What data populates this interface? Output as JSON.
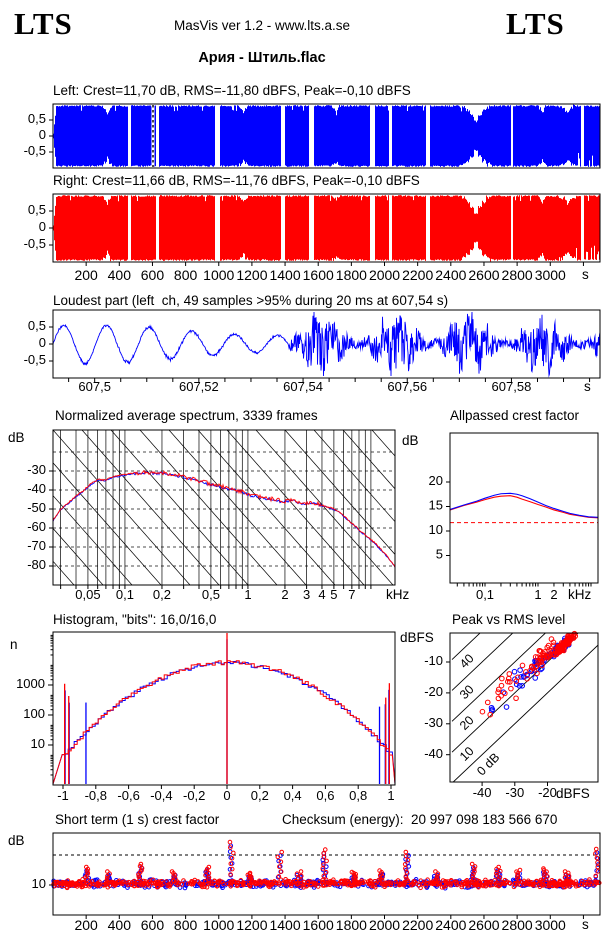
{
  "header": {
    "logo_left": "LTS",
    "logo_right": "LTS",
    "app_line": "MasVis ver 1.2 - www.lts.a.se",
    "song_title": "Ария - Штиль.flac"
  },
  "colors": {
    "left_channel": "#0000ff",
    "right_channel": "#ff0000",
    "grid": "#000000",
    "reference_dashed": "#ff0000",
    "background": "#ffffff"
  },
  "chart_data": {
    "wave_left": {
      "type": "area",
      "title": "Left: Crest=11,70 dB, RMS=-11,80 dBFS, Peak=-0,10 dBFS",
      "stats": {
        "crest_db": 11.7,
        "rms_dbfs": -11.8,
        "peak_dbfs": -0.1
      },
      "ylim": [
        -1,
        1
      ],
      "ytick_labels": [
        "0,5",
        "0",
        "-0,5"
      ],
      "ytick_values": [
        0.5,
        0,
        -0.5
      ],
      "marker_frac": 0.183,
      "seed": 11,
      "gaps": [
        [
          0.1355,
          0.142
        ],
        [
          0.1865,
          0.1925
        ],
        [
          0.296,
          0.305
        ],
        [
          0.4155,
          0.4225
        ],
        [
          0.468,
          0.4755
        ],
        [
          0.579,
          0.587
        ],
        [
          0.6135,
          0.6185
        ],
        [
          0.6815,
          0.6875
        ],
        [
          0.8365,
          0.84
        ],
        [
          0.9645,
          0.9695
        ]
      ],
      "dips": [
        [
          0.09,
          0.107,
          0.72
        ],
        [
          0.34,
          0.356,
          0.8
        ],
        [
          0.51,
          0.525,
          0.86
        ],
        [
          0.743,
          0.802,
          0.5
        ],
        [
          0.885,
          0.902,
          0.8
        ],
        [
          0.925,
          0.955,
          0.82
        ]
      ],
      "bottom_notches": [
        0.955,
        0.998
      ]
    },
    "wave_right": {
      "type": "area",
      "title": "Right: Crest=11,66 dB, RMS=-11,76 dBFS, Peak=-0,10 dBFS",
      "stats": {
        "crest_db": 11.66,
        "rms_dbfs": -11.76,
        "peak_dbfs": -0.1
      },
      "ylim": [
        -1,
        1
      ],
      "ytick_labels": [
        "0,5",
        "0",
        "-0,5"
      ],
      "ytick_values": [
        0.5,
        0,
        -0.5
      ],
      "seed": 23,
      "gaps": [
        [
          0.1355,
          0.142
        ],
        [
          0.1865,
          0.1925
        ],
        [
          0.296,
          0.305
        ],
        [
          0.4155,
          0.4225
        ],
        [
          0.468,
          0.4755
        ],
        [
          0.579,
          0.587
        ],
        [
          0.6135,
          0.6185
        ],
        [
          0.6815,
          0.6875
        ],
        [
          0.8365,
          0.84
        ],
        [
          0.9645,
          0.9695
        ]
      ],
      "dips": [
        [
          0.09,
          0.107,
          0.75
        ],
        [
          0.34,
          0.356,
          0.82
        ],
        [
          0.51,
          0.525,
          0.88
        ],
        [
          0.743,
          0.802,
          0.47
        ],
        [
          0.885,
          0.902,
          0.78
        ],
        [
          0.925,
          0.955,
          0.8
        ]
      ],
      "bottom_notches": [
        0.955,
        0.998
      ],
      "xtick_values": [
        200,
        400,
        600,
        800,
        1000,
        1200,
        1400,
        1600,
        1800,
        2000,
        2200,
        2400,
        2600,
        2800,
        3000
      ],
      "xtick_labels": [
        "200",
        "400",
        "600",
        "800",
        "1000",
        "1200",
        "1400",
        "1600",
        "1800",
        "2000",
        "2200",
        "2400",
        "2600",
        "2800",
        "3000"
      ],
      "xunit": "s",
      "xlim_s": [
        0,
        3300
      ]
    },
    "loudest": {
      "type": "line",
      "title": "Loudest part (left  ch, 49 samples >95% during 20 ms at 607,54 s)",
      "ylim": [
        -1,
        1
      ],
      "ytick_labels": [
        "0,5",
        "0",
        "-0,5"
      ],
      "ytick_values": [
        0.5,
        0,
        -0.5
      ],
      "xlim_s": [
        607.492,
        607.597
      ],
      "xtick_values": [
        607.5,
        607.52,
        607.54,
        607.56,
        607.58
      ],
      "xtick_labels": [
        "607,5",
        "607,52",
        "607,54",
        "607,56",
        "607,58"
      ],
      "xunit": "s",
      "seed": 5
    },
    "spectrum": {
      "type": "line",
      "title": "Normalized average spectrum, 3339 frames",
      "ylabel": "dB",
      "ytick_values": [
        -30,
        -40,
        -50,
        -60,
        -70,
        -80
      ],
      "ytick_labels": [
        "-30",
        "-40",
        "-50",
        "-60",
        "-70",
        "-80"
      ],
      "ylim": [
        -88,
        -9
      ],
      "xlim_khz": [
        0.026,
        15.7
      ],
      "xtick_values": [
        0.05,
        0.1,
        0.2,
        0.5,
        1,
        2,
        3,
        4,
        5,
        7
      ],
      "xtick_labels": [
        "0,05",
        "0,1",
        "0,2",
        "0,5",
        "1",
        "2",
        "3",
        "4",
        "5",
        "7"
      ],
      "xunit": "kHz",
      "series": [
        {
          "name": "left",
          "color": "#0000ff"
        },
        {
          "name": "right",
          "color": "#ff0000"
        }
      ],
      "points": [
        [
          0.026,
          -56
        ],
        [
          0.03,
          -50
        ],
        [
          0.035,
          -46.5
        ],
        [
          0.04,
          -43
        ],
        [
          0.045,
          -41
        ],
        [
          0.05,
          -38
        ],
        [
          0.055,
          -36
        ],
        [
          0.06,
          -34.5
        ],
        [
          0.07,
          -34.8
        ],
        [
          0.08,
          -33
        ],
        [
          0.09,
          -32.5
        ],
        [
          0.1,
          -31.8
        ],
        [
          0.12,
          -31.2
        ],
        [
          0.15,
          -30.6
        ],
        [
          0.18,
          -31
        ],
        [
          0.2,
          -30.8
        ],
        [
          0.25,
          -31.8
        ],
        [
          0.3,
          -33
        ],
        [
          0.35,
          -34.2
        ],
        [
          0.4,
          -35.3
        ],
        [
          0.5,
          -36.8
        ],
        [
          0.6,
          -38
        ],
        [
          0.7,
          -39.2
        ],
        [
          0.8,
          -40
        ],
        [
          0.9,
          -41
        ],
        [
          1.0,
          -42
        ],
        [
          1.1,
          -43
        ],
        [
          1.2,
          -43.5
        ],
        [
          1.4,
          -44.3
        ],
        [
          1.6,
          -44.8
        ],
        [
          1.8,
          -45.5
        ],
        [
          2.0,
          -46
        ],
        [
          2.2,
          -45.2
        ],
        [
          2.4,
          -45.6
        ],
        [
          2.6,
          -46.5
        ],
        [
          2.8,
          -47
        ],
        [
          3.0,
          -46.8
        ],
        [
          3.3,
          -46.2
        ],
        [
          3.6,
          -47
        ],
        [
          4.0,
          -48
        ],
        [
          4.5,
          -49
        ],
        [
          5.0,
          -50
        ],
        [
          5.5,
          -51.5
        ],
        [
          6.0,
          -53.5
        ],
        [
          6.5,
          -55.5
        ],
        [
          7.0,
          -57.5
        ],
        [
          7.5,
          -59
        ],
        [
          8.0,
          -61
        ],
        [
          9,
          -63.5
        ],
        [
          10,
          -66
        ],
        [
          11,
          -68.5
        ],
        [
          12,
          -71
        ],
        [
          13,
          -73.5
        ],
        [
          14,
          -76
        ],
        [
          15,
          -78.5
        ],
        [
          15.7,
          -80.5
        ]
      ]
    },
    "allpassed": {
      "type": "line",
      "title": "Allpassed crest factor",
      "ylabel": "dB",
      "ytick_values": [
        5,
        10,
        15,
        20
      ],
      "ytick_labels": [
        "5",
        "10",
        "15",
        "20"
      ],
      "ylim": [
        -0.5,
        30
      ],
      "xlim_khz": [
        0.022,
        13.5
      ],
      "xtick_values": [
        0.1,
        1,
        2
      ],
      "xtick_labels": [
        "0,1",
        "1",
        "2"
      ],
      "xunit": "kHz",
      "reference_crest_db": 11.7,
      "series": [
        {
          "name": "left",
          "color": "#0000ff",
          "points": [
            [
              0.022,
              14.4
            ],
            [
              0.04,
              15.3
            ],
            [
              0.07,
              16.1
            ],
            [
              0.1,
              16.7
            ],
            [
              0.15,
              17.3
            ],
            [
              0.2,
              17.6
            ],
            [
              0.3,
              17.7
            ],
            [
              0.4,
              17.5
            ],
            [
              0.5,
              17.2
            ],
            [
              0.7,
              16.6
            ],
            [
              1,
              15.9
            ],
            [
              1.4,
              15.2
            ],
            [
              2,
              14.6
            ],
            [
              3,
              14.0
            ],
            [
              4,
              13.6
            ],
            [
              6,
              13.2
            ],
            [
              9,
              12.9
            ],
            [
              13.5,
              12.8
            ]
          ]
        },
        {
          "name": "right",
          "color": "#ff0000",
          "points": [
            [
              0.022,
              14.3
            ],
            [
              0.04,
              15.2
            ],
            [
              0.07,
              15.9
            ],
            [
              0.1,
              16.4
            ],
            [
              0.15,
              16.9
            ],
            [
              0.2,
              17.1
            ],
            [
              0.3,
              17.2
            ],
            [
              0.4,
              16.9
            ],
            [
              0.5,
              16.5
            ],
            [
              0.7,
              16.0
            ],
            [
              1,
              15.4
            ],
            [
              1.4,
              14.9
            ],
            [
              2,
              14.3
            ],
            [
              3,
              13.8
            ],
            [
              4,
              13.4
            ],
            [
              6,
              13.1
            ],
            [
              9,
              12.8
            ],
            [
              13.5,
              12.7
            ]
          ]
        }
      ]
    },
    "histogram": {
      "type": "line",
      "title": "Histogram, \"bits\": 16,0/16,0",
      "bits": "16,0/16,0",
      "ylabel": "n",
      "ytick_values": [
        10,
        100,
        1000
      ],
      "ytick_labels": [
        "10",
        "100",
        "1000"
      ],
      "ylim_log": [
        0.47,
        59000
      ],
      "xtick_values": [
        -1,
        -0.8,
        -0.6,
        -0.4,
        -0.2,
        0,
        0.2,
        0.4,
        0.6,
        0.8,
        1
      ],
      "xtick_labels": [
        "-1",
        "-0,8",
        "-0,6",
        "-0,4",
        "-0,2",
        "0",
        "0,2",
        "0,4",
        "0,6",
        "0,8",
        "1"
      ],
      "curve": {
        "peak_log10": 3.75,
        "width_coef": 3.1
      },
      "spikes": [
        {
          "x": 0,
          "n": 56000,
          "channel": "both"
        },
        {
          "x": -0.99,
          "n": 1100,
          "channel": "both"
        },
        {
          "x": 0.99,
          "n": 1150,
          "channel": "both"
        },
        {
          "x": -0.965,
          "n": 430,
          "channel": "both"
        },
        {
          "x": 0.968,
          "n": 380,
          "channel": "both"
        },
        {
          "x": -0.86,
          "n": 260,
          "channel": "left"
        },
        {
          "x": 0.93,
          "n": 190,
          "channel": "left"
        }
      ],
      "seed": 9
    },
    "peak_rms": {
      "type": "scatter",
      "title": "Peak vs RMS level",
      "axis_label": "dBFS",
      "ytick_values": [
        -10,
        -20,
        -30,
        -40
      ],
      "ytick_labels": [
        "-10",
        "-20",
        "-30",
        "-40"
      ],
      "xtick_values": [
        -40,
        -30,
        -20
      ],
      "xtick_labels": [
        "-40",
        "-30",
        "-20"
      ],
      "xunit": "dBFS",
      "xlim": [
        -49.2,
        -4.6
      ],
      "ylim": [
        -48.8,
        -0.6
      ],
      "diagonal_values": [
        0,
        10,
        20,
        30,
        40
      ],
      "diagonal_labels": [
        "0 dB",
        "10",
        "20",
        "30",
        "40"
      ],
      "seed": 31,
      "clusters": {
        "left": [
          {
            "count": 42,
            "rms": -16,
            "rms_sd": 2.4,
            "crest": 10.8,
            "crest_sd": 1.1,
            "cap": -0.4
          },
          {
            "count": 22,
            "rms": -23,
            "rms_sd": 3.6,
            "crest": 12.2,
            "crest_sd": 2.2,
            "cap": null
          },
          {
            "count": 12,
            "rms": -34,
            "rms_sd": 5.5,
            "crest": 13.0,
            "crest_sd": 3.0,
            "cap": null
          }
        ],
        "right": [
          {
            "count": 85,
            "rms": -15,
            "rms_sd": 2.4,
            "crest": 10.4,
            "crest_sd": 1.0,
            "cap": -0.4
          },
          {
            "count": 42,
            "rms": -21.5,
            "rms_sd": 3.6,
            "crest": 12.6,
            "crest_sd": 2.4,
            "cap": null
          },
          {
            "count": 20,
            "rms": -33,
            "rms_sd": 5.5,
            "crest": 14.5,
            "crest_sd": 4.0,
            "cap": null
          }
        ]
      }
    },
    "short_term": {
      "type": "scatter",
      "title": "Short term (1 s) crest factor",
      "checksum": "Checksum (energy):  20 997 098 183 566 670",
      "ylabel": "dB",
      "ytick_values": [
        10
      ],
      "ytick_labels": [
        "10"
      ],
      "ylim": [
        0,
        27.3
      ],
      "reference_line_db": 20,
      "baseline_crest_db": 10.4,
      "xtick_values": [
        200,
        400,
        600,
        800,
        1000,
        1200,
        1400,
        1600,
        1800,
        2000,
        2200,
        2400,
        2600,
        2800,
        3000
      ],
      "xtick_labels": [
        "200",
        "400",
        "600",
        "800",
        "1000",
        "1200",
        "1400",
        "1600",
        "1800",
        "2000",
        "2200",
        "2400",
        "2600",
        "2800",
        "3000"
      ],
      "xunit": "s",
      "xlim_s": [
        0,
        3300
      ],
      "seed": 77,
      "spikes": [
        [
          0.062,
          16
        ],
        [
          0.1,
          14.5
        ],
        [
          0.159,
          17
        ],
        [
          0.22,
          14.5
        ],
        [
          0.282,
          16
        ],
        [
          0.327,
          24.3
        ],
        [
          0.36,
          14
        ],
        [
          0.415,
          21
        ],
        [
          0.45,
          14.5
        ],
        [
          0.497,
          21.8
        ],
        [
          0.55,
          14.3
        ],
        [
          0.6,
          14.8
        ],
        [
          0.647,
          21
        ],
        [
          0.7,
          14.5
        ],
        [
          0.768,
          17
        ],
        [
          0.814,
          16
        ],
        [
          0.85,
          15
        ],
        [
          0.9,
          15.5
        ],
        [
          0.94,
          14.5
        ],
        [
          0.995,
          22
        ]
      ]
    }
  }
}
